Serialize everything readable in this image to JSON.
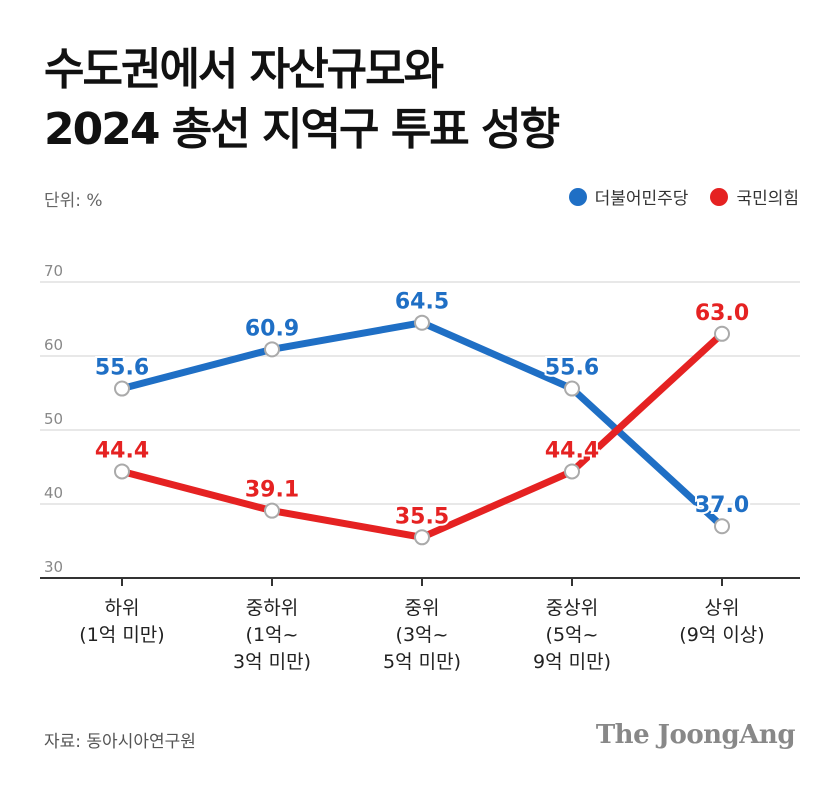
{
  "title_lines": [
    "수도권에서 자산규모와",
    "2024 총선 지역구 투표 성향"
  ],
  "unit_label": "단위: %",
  "source": "자료: 동아시아연구원",
  "brand": "The JoongAng",
  "chart_data": {
    "type": "line",
    "categories": [
      [
        "하위",
        "(1억 미만)"
      ],
      [
        "중하위",
        "(1억~",
        "3억 미만)"
      ],
      [
        "중위",
        "(3억~",
        "5억 미만)"
      ],
      [
        "중상위",
        "(5억~",
        "9억 미만)"
      ],
      [
        "상위",
        "(9억 이상)"
      ]
    ],
    "series": [
      {
        "name": "더불어민주당",
        "color": "#1f6fc5",
        "values": [
          55.6,
          60.9,
          64.5,
          55.6,
          37.0
        ]
      },
      {
        "name": "국민의힘",
        "color": "#e52222",
        "values": [
          44.4,
          39.1,
          35.5,
          44.4,
          63.0
        ]
      }
    ],
    "value_labels": [
      [
        "55.6",
        "60.9",
        "64.5",
        "55.6",
        "37.0"
      ],
      [
        "44.4",
        "39.1",
        "35.5",
        "44.4",
        "63.0"
      ]
    ],
    "y_ticks": [
      30,
      40,
      50,
      60,
      70
    ],
    "ylim": [
      30,
      70
    ],
    "grid": true,
    "legend_position": "top-right"
  }
}
